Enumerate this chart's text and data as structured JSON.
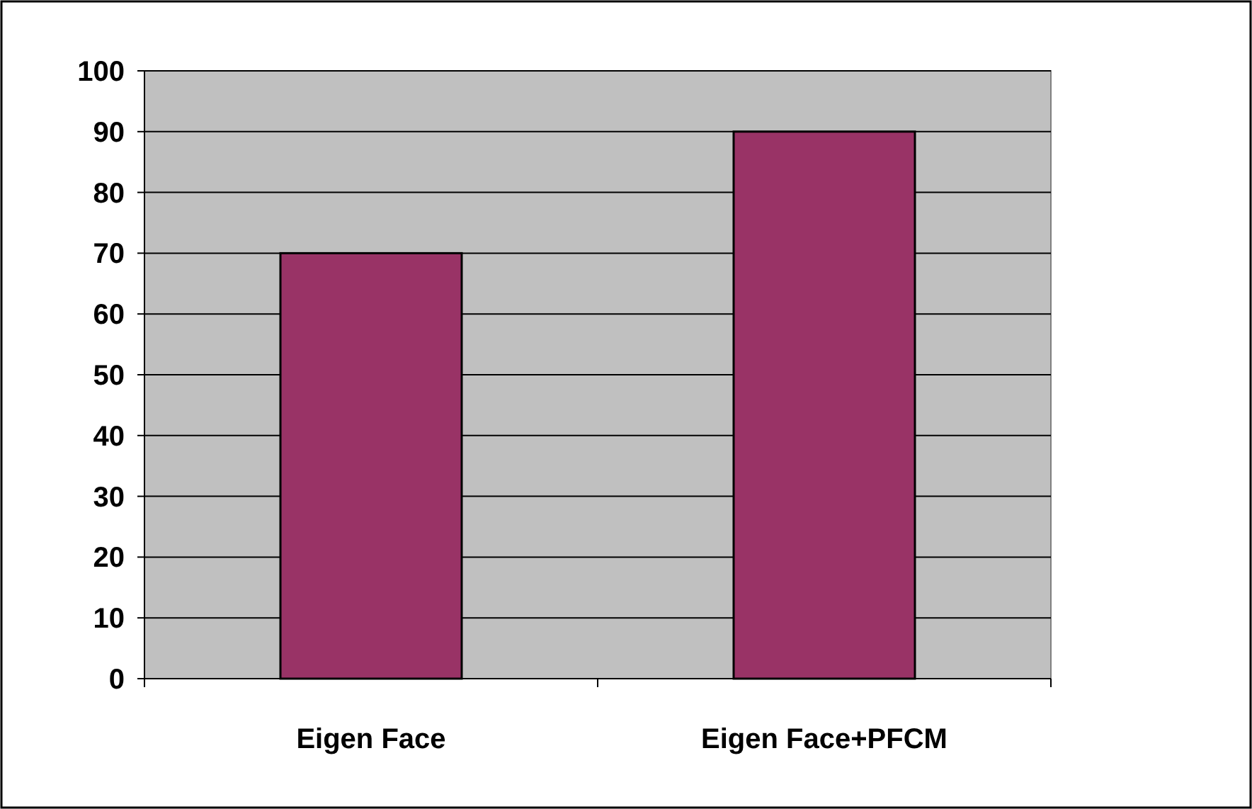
{
  "chart_data": {
    "type": "bar",
    "categories": [
      "Eigen Face",
      "Eigen Face+PFCM"
    ],
    "values": [
      70,
      90
    ],
    "color": "#993366",
    "ylim": [
      0,
      100
    ],
    "yticks": [
      0,
      10,
      20,
      30,
      40,
      50,
      60,
      70,
      80,
      90,
      100
    ],
    "grid": "y"
  }
}
